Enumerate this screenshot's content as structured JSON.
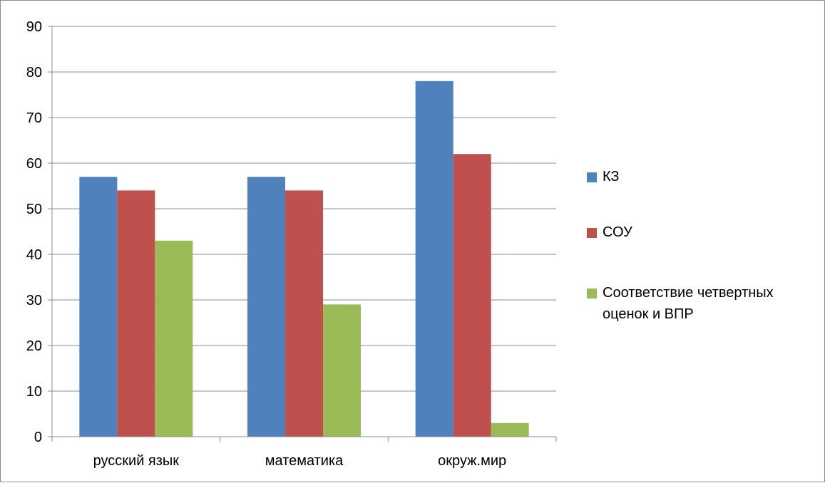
{
  "chart_data": {
    "type": "bar",
    "categories": [
      "русский язык",
      "математика",
      "окруж.мир"
    ],
    "series": [
      {
        "name": "КЗ",
        "values": [
          57,
          57,
          78
        ],
        "color": "#4F81BD"
      },
      {
        "name": "СОУ",
        "values": [
          54,
          54,
          62
        ],
        "color": "#C0504D"
      },
      {
        "name": "Соответствие четвертных оценок и ВПР",
        "values": [
          43,
          29,
          3
        ],
        "color": "#9BBB59"
      }
    ],
    "ylim": [
      0,
      90
    ],
    "yticks": [
      0,
      10,
      20,
      30,
      40,
      50,
      60,
      70,
      80,
      90
    ],
    "grid": true,
    "legend_position": "right"
  }
}
